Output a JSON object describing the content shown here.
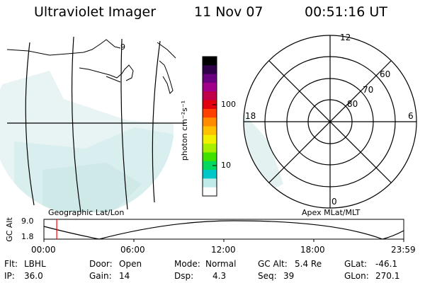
{
  "header": {
    "instrument": "Ultraviolet Imager",
    "date": "11 Nov 07",
    "time": "00:51:16 UT"
  },
  "geo_map": {
    "meridian_label": "9",
    "caption": "Geographic Lat/Lon"
  },
  "colorbar": {
    "unit_label": "photon cm⁻²s⁻¹",
    "ticks": [
      "100",
      "10"
    ],
    "colors": [
      "#000000",
      "#30004a",
      "#6a0080",
      "#a0008a",
      "#c00048",
      "#e00010",
      "#ff4000",
      "#ff8c00",
      "#ffc000",
      "#f0f000",
      "#a8ee00",
      "#40e000",
      "#00d860",
      "#00c8c8",
      "#c0eaea",
      "#ffffff"
    ]
  },
  "polar_plot": {
    "mlt_labels": {
      "top": "12",
      "left": "18",
      "right": "6",
      "bottom": "0"
    },
    "lat_labels": [
      "60",
      "70",
      "80"
    ],
    "caption": "Apex MLat/MLT"
  },
  "timeline": {
    "y_label": "GC Alt",
    "y_ticks": [
      "9.0",
      "1.8"
    ],
    "x_ticks": [
      "00:00",
      "06:00",
      "12:00",
      "18:00",
      "23:59"
    ],
    "current_time_fraction": 0.0356,
    "marker_color": "#ff0000"
  },
  "status": {
    "flt_label": "Flt:",
    "flt_value": "LBHL",
    "ip_label": "IP:",
    "ip_value": "36.0",
    "door_label": "Door:",
    "door_value": "Open",
    "gain_label": "Gain:",
    "gain_value": "14",
    "mode_label": "Mode:",
    "mode_value": "Normal",
    "dsp_label": "Dsp:",
    "dsp_value": "4.3",
    "gcalt_label": "GC Alt:",
    "gcalt_value": "5.4 Re",
    "seq_label": "Seq:",
    "seq_value": "39",
    "glat_label": "GLat:",
    "glat_value": "-46.1",
    "glon_label": "GLon:",
    "glon_value": "270.1"
  }
}
